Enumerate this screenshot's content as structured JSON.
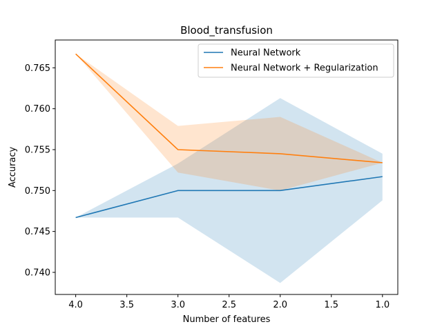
{
  "chart_data": {
    "type": "line",
    "title": "Blood_transfusion",
    "xlabel": "Number of features",
    "ylabel": "Accuracy",
    "x": [
      4.0,
      3.0,
      2.0,
      1.0
    ],
    "xlim": [
      4.2,
      0.85
    ],
    "ylim": [
      0.7373,
      0.7684
    ],
    "x_ticks": [
      4.0,
      3.5,
      3.0,
      2.5,
      2.0,
      1.5,
      1.0
    ],
    "x_tick_labels": [
      "4.0",
      "3.5",
      "3.0",
      "2.5",
      "2.0",
      "1.5",
      "1.0"
    ],
    "y_ticks": [
      0.74,
      0.745,
      0.75,
      0.755,
      0.76,
      0.765
    ],
    "y_tick_labels": [
      "0.740",
      "0.745",
      "0.750",
      "0.755",
      "0.760",
      "0.765"
    ],
    "x_inverted": true,
    "grid": false,
    "legend_position": "top-right",
    "series": [
      {
        "name": "Neural Network",
        "color": "#1f77b4",
        "values": [
          0.7467,
          0.75,
          0.75,
          0.7517
        ],
        "band_lower": [
          0.7467,
          0.7467,
          0.7387,
          0.7488
        ],
        "band_upper": [
          0.7467,
          0.7533,
          0.7613,
          0.7545
        ]
      },
      {
        "name": "Neural Network + Regularization",
        "color": "#ff7f0e",
        "values": [
          0.7667,
          0.755,
          0.7545,
          0.7534
        ],
        "band_lower": [
          0.7667,
          0.7522,
          0.75,
          0.7534
        ],
        "band_upper": [
          0.7667,
          0.7579,
          0.759,
          0.7534
        ]
      }
    ]
  }
}
